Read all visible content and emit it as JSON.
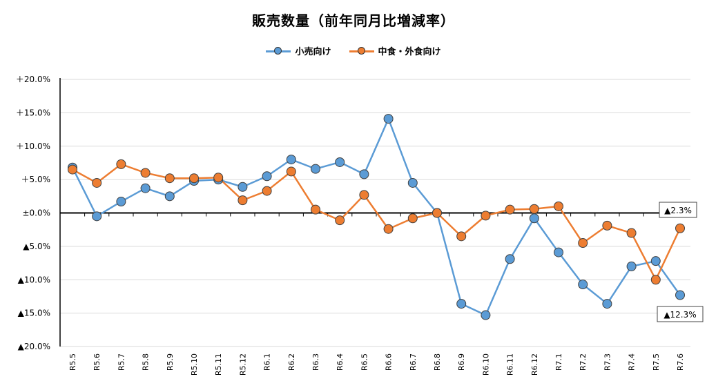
{
  "chart_data": {
    "type": "line",
    "title": "販売数量（前年同月比増減率）",
    "categories": [
      "R5.5",
      "R5.6",
      "R5.7",
      "R5.8",
      "R5.9",
      "R5.10",
      "R5.11",
      "R5.12",
      "R6.1",
      "R6.2",
      "R6.3",
      "R6.4",
      "R6.5",
      "R6.6",
      "R6.7",
      "R6.8",
      "R6.9",
      "R6.10",
      "R6.11",
      "R6.12",
      "R7.1",
      "R7.2",
      "R7.3",
      "R7.4",
      "R7.5",
      "R7.6"
    ],
    "series": [
      {
        "name": "小売向け",
        "color": "#5B9BD5",
        "values": [
          6.8,
          -0.5,
          1.7,
          3.7,
          2.5,
          4.8,
          5.0,
          3.9,
          5.5,
          8.0,
          6.6,
          7.6,
          5.8,
          14.1,
          4.5,
          0.0,
          -13.6,
          -15.3,
          -6.9,
          -0.8,
          -5.9,
          -10.7,
          -13.6,
          -8.0,
          -7.2,
          -12.3
        ]
      },
      {
        "name": "中食・外食向け",
        "color": "#ED7D31",
        "values": [
          6.5,
          4.5,
          7.3,
          6.0,
          5.2,
          5.2,
          5.3,
          1.9,
          3.3,
          6.2,
          0.5,
          -1.1,
          2.7,
          -2.4,
          -0.8,
          0.0,
          -3.5,
          -0.4,
          0.5,
          0.6,
          1.0,
          -4.5,
          -1.9,
          -3.0,
          -10.0,
          -2.3
        ]
      }
    ],
    "yaxis": {
      "min": -20,
      "max": 20,
      "step": 5,
      "tick_labels": [
        "＋20.0%",
        "＋15.0%",
        "＋10.0%",
        "＋5.0%",
        "±0.0%",
        "▲5.0%",
        "▲10.0%",
        "▲15.0%",
        "▲20.0%"
      ]
    },
    "annotations": [
      {
        "text": "▲2.3%",
        "series": 1,
        "index": 25
      },
      {
        "text": "▲12.3%",
        "series": 0,
        "index": 25
      }
    ],
    "grid": true,
    "legend": "top-center"
  }
}
